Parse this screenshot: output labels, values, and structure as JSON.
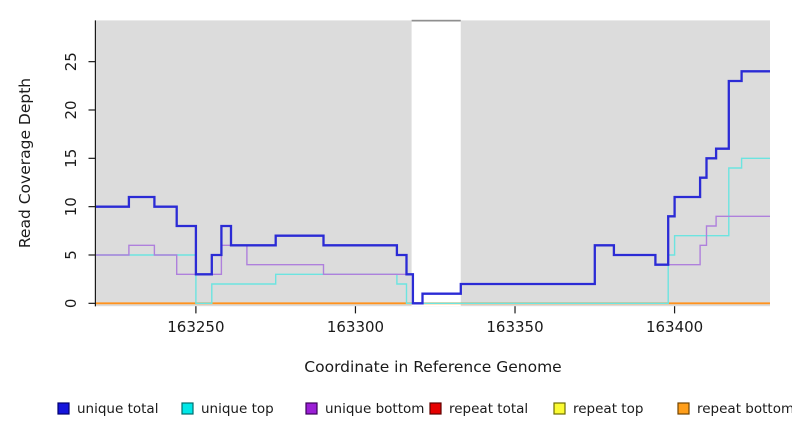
{
  "y_axis": {
    "title": "Read Coverage Depth",
    "ticks": [
      0,
      5,
      10,
      15,
      20,
      25
    ]
  },
  "x_axis": {
    "title": "Coordinate in Reference Genome",
    "ticks": [
      163250,
      163300,
      163350,
      163400
    ]
  },
  "legend": [
    {
      "label": "unique total",
      "fill": "#1414dc",
      "border": "#00006e"
    },
    {
      "label": "unique top",
      "fill": "#00e7e7",
      "border": "#006e6e"
    },
    {
      "label": "unique bottom",
      "fill": "#9b1fd6",
      "border": "#3c005a"
    },
    {
      "label": "repeat total",
      "fill": "#e60000",
      "border": "#5e0000"
    },
    {
      "label": "repeat top",
      "fill": "#fbfb33",
      "border": "#6e6e00"
    },
    {
      "label": "repeat bottom",
      "fill": "#ff9e1a",
      "border": "#714400"
    }
  ],
  "chart_data": {
    "type": "line",
    "subtype": "step-coverage",
    "title": "",
    "xlabel": "Coordinate in Reference Genome",
    "ylabel": "Read Coverage Depth",
    "xlim": [
      163218.7,
      163429.9
    ],
    "ylim": [
      0,
      29
    ],
    "plot_background": "#dcdcdc",
    "page_background": "#ffffff",
    "grid": false,
    "legend_position": "bottom",
    "highlight_region": {
      "start": 163317.6,
      "end": 163333,
      "color": "#ffffff",
      "top_border_color": "#8f8f8f",
      "meaning": "white vertical band (gap in shaded background)"
    },
    "series": [
      {
        "name": "repeat total",
        "color": "#dd0000",
        "width": 1.4,
        "steps": [
          [
            163219,
            0
          ]
        ]
      },
      {
        "name": "repeat top",
        "color": "#ffff00",
        "width": 1.4,
        "steps": [
          [
            163219,
            0
          ]
        ]
      },
      {
        "name": "repeat bottom",
        "color": "#ff921e",
        "width": 1.9,
        "steps": [
          [
            163219,
            0
          ]
        ]
      },
      {
        "name": "unique top",
        "color": "#6ce4e0",
        "width": 1.4,
        "steps": [
          [
            163219,
            5
          ],
          [
            163250,
            0
          ],
          [
            163255,
            2
          ],
          [
            163275,
            3
          ],
          [
            163313,
            2
          ],
          [
            163316,
            0
          ],
          [
            163398,
            5
          ],
          [
            163400,
            7
          ],
          [
            163417,
            14
          ],
          [
            163421,
            15
          ]
        ]
      },
      {
        "name": "unique bottom",
        "color": "#af80dc",
        "width": 1.4,
        "steps": [
          [
            163219,
            5
          ],
          [
            163229,
            6
          ],
          [
            163237,
            5
          ],
          [
            163244,
            3
          ],
          [
            163258,
            6
          ],
          [
            163266,
            4
          ],
          [
            163290,
            3
          ],
          [
            163318,
            0
          ],
          [
            163321,
            1
          ],
          [
            163333,
            2
          ],
          [
            163375,
            6
          ],
          [
            163381,
            5
          ],
          [
            163394,
            4
          ],
          [
            163408,
            6
          ],
          [
            163410,
            8
          ],
          [
            163413,
            9
          ]
        ]
      },
      {
        "name": "unique total",
        "color": "#2b2bd5",
        "width": 2.3,
        "steps": [
          [
            163219,
            10
          ],
          [
            163229,
            11
          ],
          [
            163237,
            10
          ],
          [
            163244,
            8
          ],
          [
            163250,
            3
          ],
          [
            163255,
            5
          ],
          [
            163258,
            8
          ],
          [
            163261,
            6
          ],
          [
            163275,
            7
          ],
          [
            163290,
            6
          ],
          [
            163313,
            5
          ],
          [
            163316,
            3
          ],
          [
            163318,
            0
          ],
          [
            163321,
            1
          ],
          [
            163333,
            2
          ],
          [
            163375,
            6
          ],
          [
            163381,
            5
          ],
          [
            163394,
            4
          ],
          [
            163398,
            9
          ],
          [
            163400,
            11
          ],
          [
            163408,
            13
          ],
          [
            163410,
            15
          ],
          [
            163413,
            16
          ],
          [
            163417,
            23
          ],
          [
            163421,
            24
          ]
        ]
      }
    ]
  }
}
